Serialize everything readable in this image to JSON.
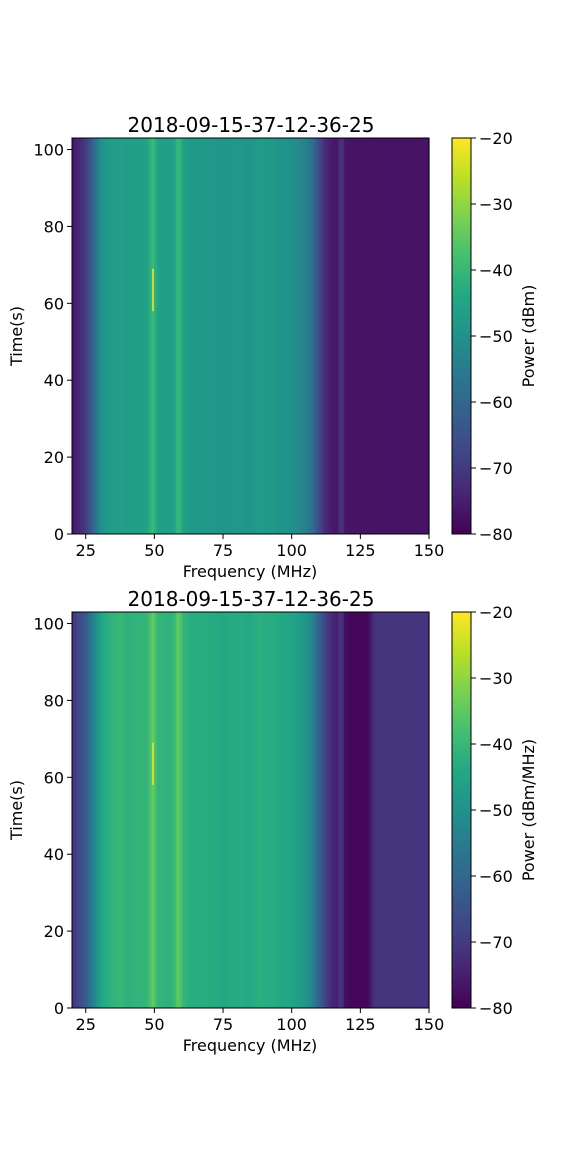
{
  "chart_data": [
    {
      "type": "heatmap",
      "title": "2018-09-15-37-12-36-25",
      "xlabel": "Frequency (MHz)",
      "ylabel": "Time(s)",
      "xlim": [
        20,
        150
      ],
      "ylim": [
        0,
        103
      ],
      "xticks": [
        25,
        50,
        75,
        100,
        125,
        150
      ],
      "yticks": [
        0,
        20,
        40,
        60,
        80,
        100
      ],
      "colorbar": {
        "label": "Power (dBm)",
        "range": [
          -80,
          -20
        ],
        "ticks": [
          -20,
          -30,
          -40,
          -50,
          -60,
          -70,
          -80
        ],
        "colormap": "viridis"
      },
      "profile": {
        "frequency_mhz": [
          20,
          22,
          25,
          27,
          29,
          30,
          32,
          35,
          38,
          40,
          43,
          46,
          48,
          49,
          50,
          51,
          53,
          55,
          57,
          58,
          59,
          60,
          62,
          65,
          70,
          75,
          80,
          85,
          88,
          90,
          93,
          96,
          100,
          103,
          105,
          107,
          109,
          111,
          113,
          115,
          117,
          118,
          119,
          121,
          125,
          130,
          135,
          140,
          145,
          150
        ],
        "power_dbm": [
          -77,
          -74,
          -70,
          -63,
          -56,
          -51,
          -48,
          -47,
          -46,
          -47,
          -46,
          -46,
          -45,
          -39,
          -40,
          -46,
          -46,
          -47,
          -46,
          -42,
          -38,
          -45,
          -47,
          -48,
          -48,
          -49,
          -48,
          -49,
          -47,
          -48,
          -48,
          -49,
          -50,
          -52,
          -54,
          -57,
          -63,
          -70,
          -74,
          -76,
          -76,
          -68,
          -76,
          -77,
          -77,
          -77,
          -77,
          -77,
          -77,
          -77
        ]
      },
      "transient": {
        "frequency_mhz": 49.5,
        "time_s": [
          58,
          69
        ],
        "power_dbm": -22
      }
    },
    {
      "type": "heatmap",
      "title": "2018-09-15-37-12-36-25",
      "xlabel": "Frequency (MHz)",
      "ylabel": "Time(s)",
      "xlim": [
        20,
        150
      ],
      "ylim": [
        0,
        103
      ],
      "xticks": [
        25,
        50,
        75,
        100,
        125,
        150
      ],
      "yticks": [
        0,
        20,
        40,
        60,
        80,
        100
      ],
      "colorbar": {
        "label": "Power (dBm/MHz)",
        "range": [
          -80,
          -20
        ],
        "ticks": [
          -20,
          -30,
          -40,
          -50,
          -60,
          -70,
          -80
        ],
        "colormap": "viridis"
      },
      "profile": {
        "frequency_mhz": [
          20,
          22,
          25,
          27,
          29,
          30,
          32,
          35,
          38,
          40,
          43,
          46,
          48,
          49,
          50,
          51,
          53,
          55,
          57,
          58,
          59,
          60,
          62,
          65,
          70,
          75,
          80,
          85,
          88,
          90,
          93,
          96,
          100,
          103,
          105,
          107,
          109,
          111,
          113,
          115,
          117,
          118,
          119,
          121,
          125,
          128,
          130,
          135,
          140,
          145,
          150
        ],
        "power_dbm": [
          -72,
          -68,
          -63,
          -56,
          -50,
          -46,
          -43,
          -41,
          -40,
          -42,
          -41,
          -41,
          -40,
          -34,
          -35,
          -41,
          -41,
          -42,
          -41,
          -37,
          -33,
          -40,
          -42,
          -43,
          -43,
          -44,
          -43,
          -44,
          -42,
          -43,
          -43,
          -44,
          -45,
          -47,
          -49,
          -52,
          -58,
          -64,
          -70,
          -74,
          -75,
          -67,
          -77,
          -79,
          -79,
          -79,
          -71,
          -71,
          -71,
          -71,
          -71
        ]
      },
      "transient": {
        "frequency_mhz": 49.5,
        "time_s": [
          58,
          69
        ],
        "power_dbm": -22
      }
    }
  ]
}
